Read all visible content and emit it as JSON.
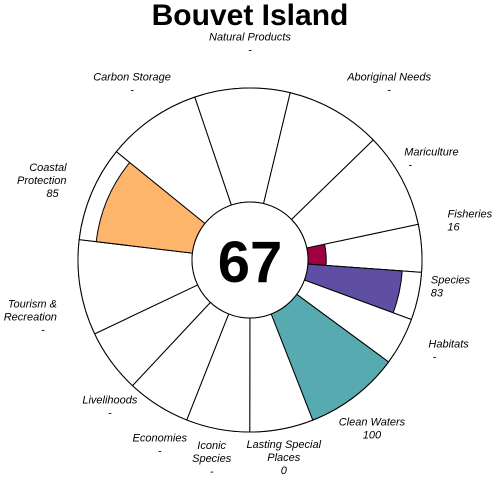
{
  "chart_data": {
    "type": "flower",
    "title": "Bouvet Island",
    "center_score": "67",
    "max_value": 100,
    "petals": [
      {
        "label_lines": [
          "Fisheries"
        ],
        "value_text": "16",
        "value": 16,
        "color": "#9E0142"
      },
      {
        "label_lines": [
          "Species"
        ],
        "value_text": "83",
        "value": 83,
        "color": "#5E4FA2"
      },
      {
        "label_lines": [
          "Habitats"
        ],
        "value_text": "-",
        "value": null,
        "color": "#3288BD"
      },
      {
        "label_lines": [
          "Clean Waters"
        ],
        "value_text": "100",
        "value": 100,
        "color": "#57ABB0"
      },
      {
        "label_lines": [
          "Lasting Special",
          "Places"
        ],
        "value_text": "0",
        "value": 0,
        "color": "#ABDDA4"
      },
      {
        "label_lines": [
          "Iconic",
          "Species"
        ],
        "value_text": "-",
        "value": null,
        "color": "#E6F598"
      },
      {
        "label_lines": [
          "Economies"
        ],
        "value_text": "-",
        "value": null,
        "color": "#FFFFBF"
      },
      {
        "label_lines": [
          "Livelihoods"
        ],
        "value_text": "-",
        "value": null,
        "color": "#FEE08B"
      },
      {
        "label_lines": [
          "Tourism &",
          "Recreation"
        ],
        "value_text": "-",
        "value": null,
        "color": "#FDAE61"
      },
      {
        "label_lines": [
          "Coastal",
          "Protection"
        ],
        "value_text": "85",
        "value": 85,
        "color": "#FDB46B"
      },
      {
        "label_lines": [
          "Carbon Storage"
        ],
        "value_text": "-",
        "value": null,
        "color": "#F46D43"
      },
      {
        "label_lines": [
          "Natural Products"
        ],
        "value_text": "-",
        "value": null,
        "color": "#D53E4F"
      },
      {
        "label_lines": [
          "Aboriginal Needs"
        ],
        "value_text": "-",
        "value": null,
        "color": "#D53E4F"
      },
      {
        "label_lines": [
          "Mariculture"
        ],
        "value_text": "-",
        "value": null,
        "color": "#D53E4F"
      }
    ]
  }
}
